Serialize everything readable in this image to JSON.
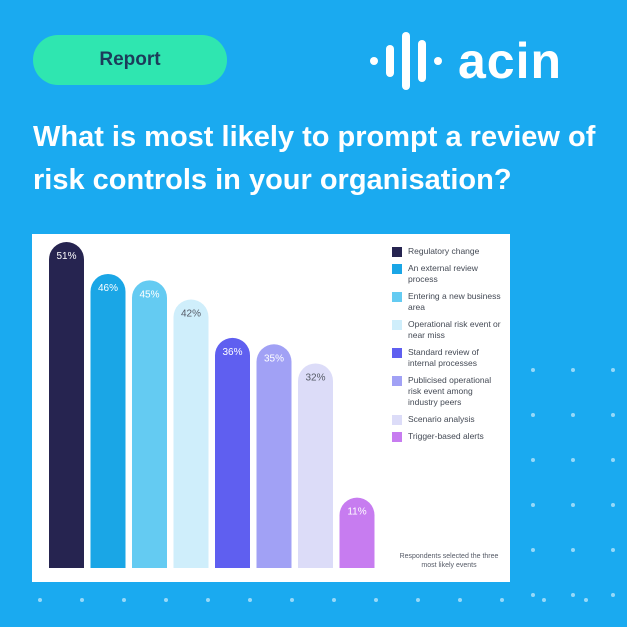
{
  "badge": {
    "label": "Report"
  },
  "logo": {
    "text": "acin"
  },
  "headline": "What is most likely to prompt a review of risk controls in your organisation?",
  "note": "Respondents selected the three most likely events",
  "colors": {
    "background": "#1aaaf0",
    "badge": "#2fe6b0",
    "badge_text": "#1c3c5a"
  },
  "chart_data": {
    "type": "bar",
    "categories": [
      "Regulatory change",
      "An external review process",
      "Entering a new business area",
      "Operational risk event or near miss",
      "Standard review of internal processes",
      "Publicised operational risk event among industry peers",
      "Scenario analysis",
      "Trigger-based alerts"
    ],
    "values": [
      51,
      46,
      45,
      42,
      36,
      35,
      32,
      11
    ],
    "data_labels": [
      "51%",
      "46%",
      "45%",
      "42%",
      "36%",
      "35%",
      "32%",
      "11%"
    ],
    "colors": [
      "#262450",
      "#1aa6e6",
      "#64cbf2",
      "#cfeefb",
      "#5f5ff0",
      "#a1a1f5",
      "#dcdcf8",
      "#c77cf0"
    ],
    "label_colors": [
      "#ffffff",
      "#ffffff",
      "#ffffff",
      "#555a66",
      "#ffffff",
      "#ffffff",
      "#555a66",
      "#ffffff"
    ],
    "ylim": [
      0,
      51
    ],
    "grid": false,
    "legend_position": "right",
    "title": "",
    "xlabel": "",
    "ylabel": ""
  }
}
